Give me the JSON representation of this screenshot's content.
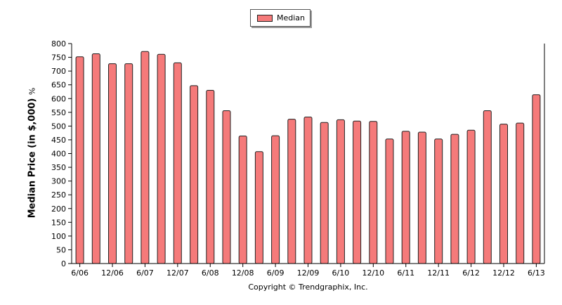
{
  "chart_data": {
    "type": "bar",
    "title": "",
    "ylabel": "Median Price (in $,000)",
    "ylabel_unit": "%",
    "xlabel": "",
    "ylim": [
      0,
      800
    ],
    "ytick_step": 50,
    "grid": false,
    "legend_position": "top-center",
    "colors": {
      "bar": "#f57a7a",
      "bar_border": "#222222"
    },
    "series": [
      {
        "name": "Median",
        "values": [
          752,
          763,
          727,
          727,
          771,
          761,
          730,
          647,
          630,
          556,
          464,
          407,
          465,
          525,
          533,
          513,
          523,
          518,
          517,
          453,
          481,
          478,
          453,
          470,
          485,
          556,
          507,
          511,
          614
        ]
      }
    ],
    "xtick_labels": [
      {
        "index": 0,
        "label": "6/06"
      },
      {
        "index": 2,
        "label": "12/06"
      },
      {
        "index": 4,
        "label": "6/07"
      },
      {
        "index": 6,
        "label": "12/07"
      },
      {
        "index": 8,
        "label": "6/08"
      },
      {
        "index": 10,
        "label": "12/08"
      },
      {
        "index": 12,
        "label": "6/09"
      },
      {
        "index": 14,
        "label": "12/09"
      },
      {
        "index": 16,
        "label": "6/10"
      },
      {
        "index": 18,
        "label": "12/10"
      },
      {
        "index": 20,
        "label": "6/11"
      },
      {
        "index": 22,
        "label": "12/11"
      },
      {
        "index": 24,
        "label": "6/12"
      },
      {
        "index": 26,
        "label": "12/12"
      },
      {
        "index": 28,
        "label": "6/13"
      }
    ]
  },
  "legend": {
    "label": "Median"
  },
  "footer": {
    "copyright": "Copyright © Trendgraphix, Inc."
  }
}
